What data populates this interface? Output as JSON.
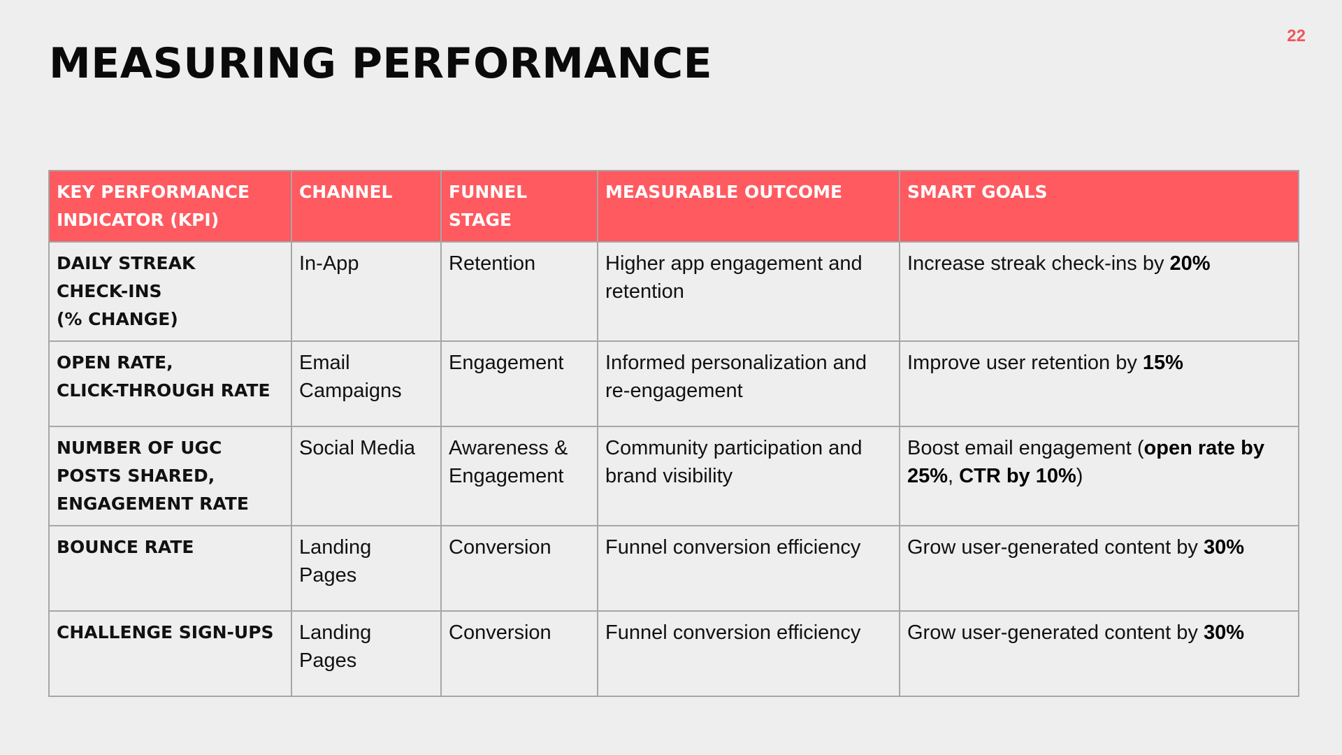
{
  "page_number": "22",
  "title": "MEASURING PERFORMANCE",
  "table": {
    "headers": [
      "KEY PERFORMANCE INDICATOR (KPI)",
      "CHANNEL",
      "FUNNEL STAGE",
      "MEASURABLE OUTCOME",
      "SMART GOALS"
    ],
    "rows": [
      {
        "kpi_lines": [
          "DAILY STREAK",
          "CHECK-INS",
          "(% CHANGE)"
        ],
        "channel": "In-App",
        "funnel_stage": "Retention",
        "outcome": "Higher app engagement and retention",
        "goal_text": "Increase streak check-ins by ",
        "goal_bold": "20%"
      },
      {
        "kpi_lines": [
          "OPEN RATE,",
          "CLICK-THROUGH RATE"
        ],
        "channel": "Email Campaigns",
        "funnel_stage": "Engagement",
        "outcome": "Informed personalization and re-engagement",
        "goal_text": "Improve user retention by ",
        "goal_bold": "15%"
      },
      {
        "kpi_lines": [
          "NUMBER OF UGC",
          "POSTS SHARED,",
          "ENGAGEMENT RATE"
        ],
        "channel": "Social Media",
        "funnel_stage": "Awareness & Engagement",
        "outcome": "Community participation and brand visibility",
        "goal_text": "Boost email engagement (",
        "goal_bold": "open rate by 25%",
        "goal_text_2": ", ",
        "goal_bold_2": "CTR by 10%",
        "goal_text_3": ")"
      },
      {
        "kpi_lines": [
          "BOUNCE RATE"
        ],
        "channel": "Landing Pages",
        "funnel_stage": "Conversion",
        "outcome": "Funnel conversion efficiency",
        "goal_text": "Grow user-generated content by ",
        "goal_bold": "30%"
      },
      {
        "kpi_lines": [
          "CHALLENGE SIGN-UPS"
        ],
        "channel": "Landing Pages",
        "funnel_stage": "Conversion",
        "outcome": "Funnel conversion efficiency",
        "goal_text": "Grow user-generated content by ",
        "goal_bold": "30%"
      }
    ]
  },
  "colors": {
    "background": "#eeeeee",
    "accent": "#ff5a60",
    "page_number": "#f0555c",
    "border": "#a6a6a6"
  }
}
